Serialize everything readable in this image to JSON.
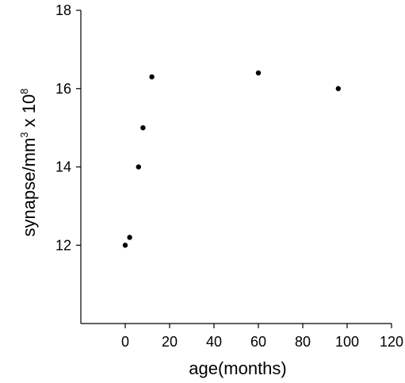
{
  "chart_data": {
    "type": "scatter",
    "title": "",
    "xlabel": "age(months)",
    "ylabel_parts": {
      "pre": "synapse/mm",
      "sup1": "3",
      "mid": " x 10",
      "sup2": "8"
    },
    "xlim": [
      -20,
      120
    ],
    "ylim": [
      10,
      18
    ],
    "xticks": [
      0,
      20,
      40,
      60,
      80,
      100,
      120
    ],
    "yticks": [
      12,
      14,
      16,
      18
    ],
    "grid": false,
    "legend": "none",
    "points": [
      {
        "x": 0,
        "y": 12.0
      },
      {
        "x": 2,
        "y": 12.2
      },
      {
        "x": 6,
        "y": 14.0
      },
      {
        "x": 8,
        "y": 15.0
      },
      {
        "x": 12,
        "y": 16.3
      },
      {
        "x": 60,
        "y": 16.4
      },
      {
        "x": 96,
        "y": 16.0
      }
    ],
    "colors": {
      "marker": "#000000",
      "axis": "#000000"
    }
  }
}
